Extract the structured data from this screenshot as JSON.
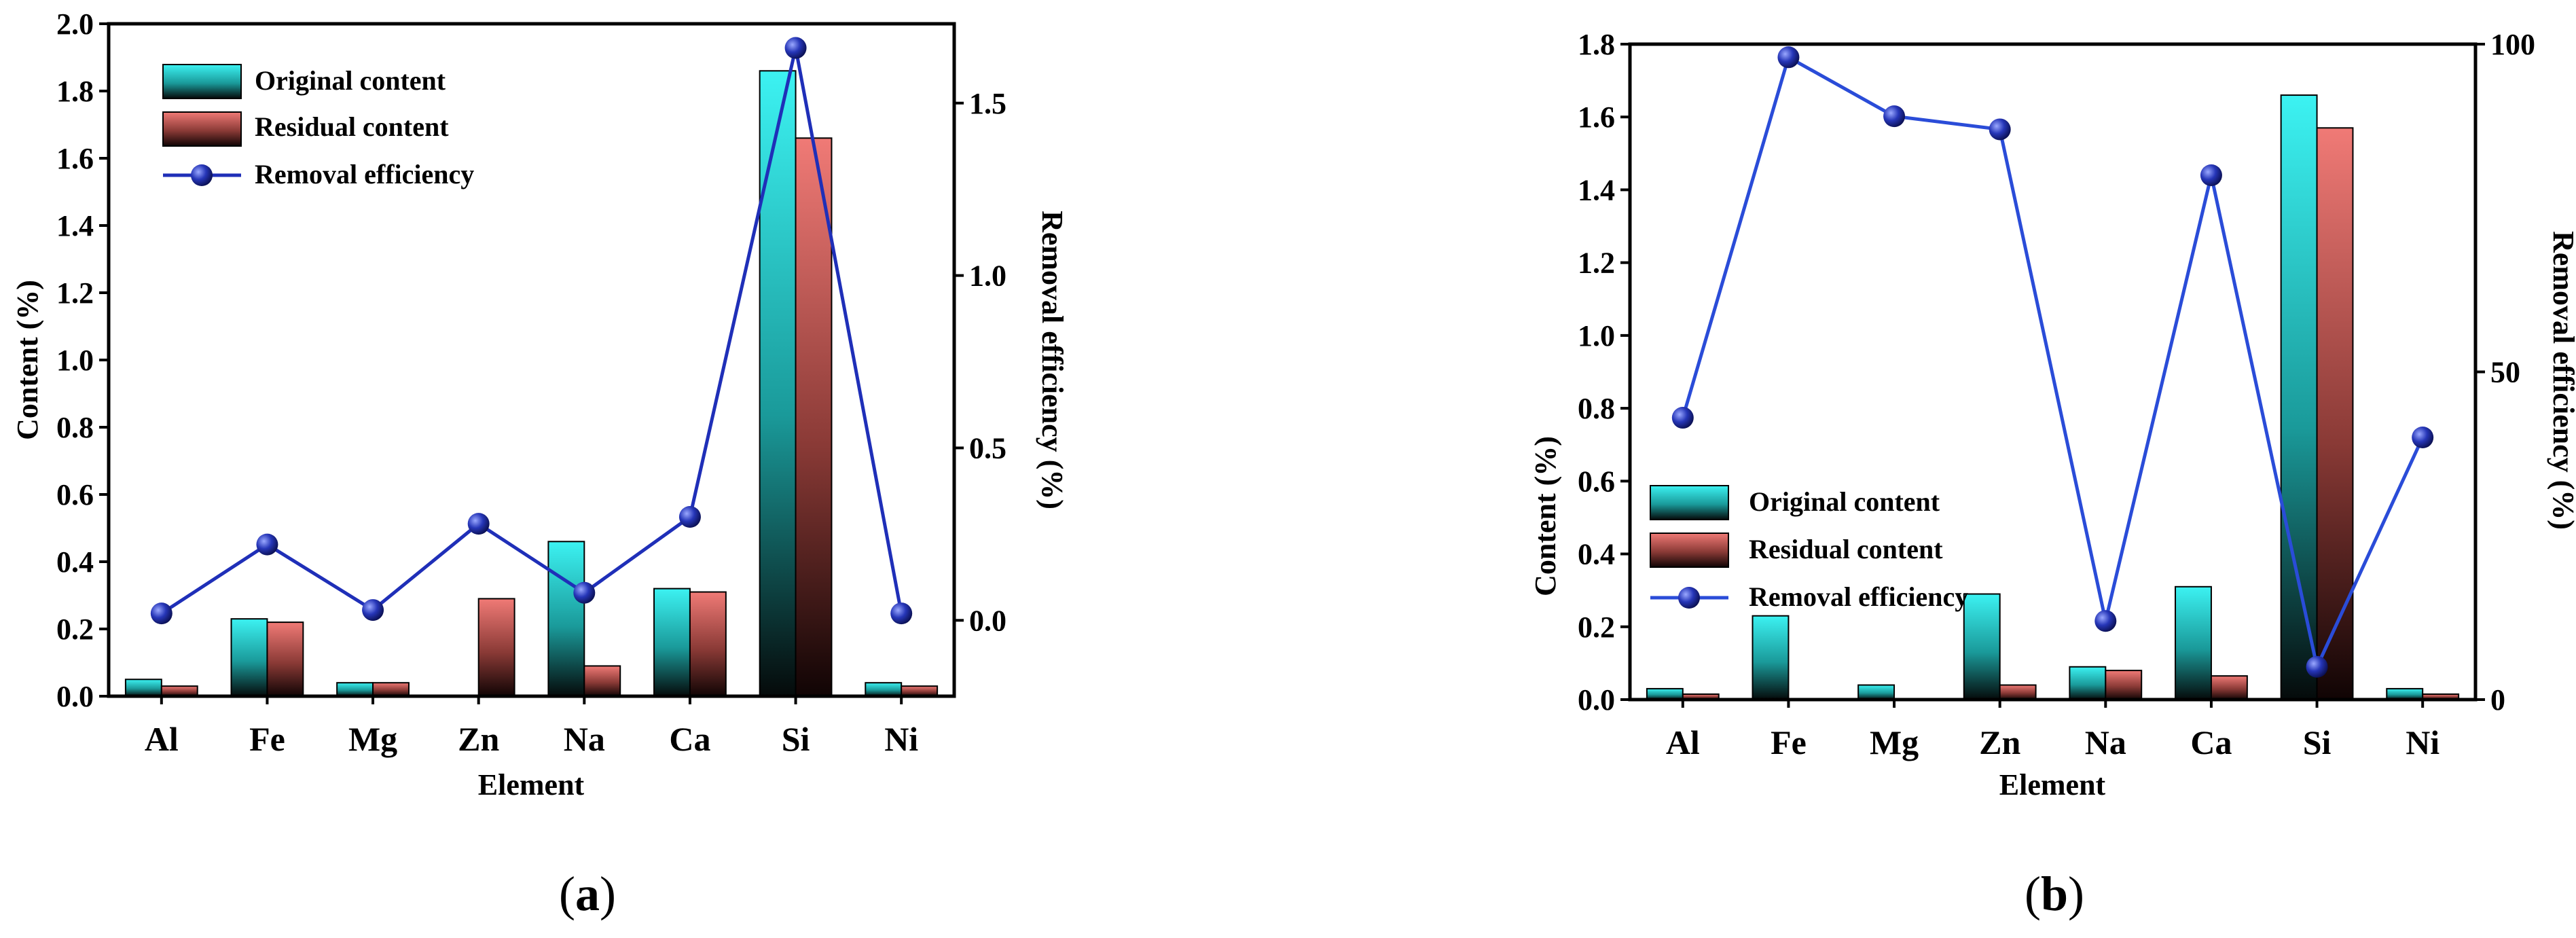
{
  "panels": [
    {
      "label_open": "(",
      "label_letter": "a",
      "label_close": ")"
    },
    {
      "label_open": "(",
      "label_letter": "b",
      "label_close": ")"
    }
  ],
  "chart_data": [
    {
      "type": "bar",
      "categories": [
        "Al",
        "Fe",
        "Mg",
        "Zn",
        "Na",
        "Ca",
        "Si",
        "Ni"
      ],
      "series": [
        {
          "name": "Original content",
          "values": [
            0.05,
            0.23,
            0.04,
            0.0,
            0.46,
            0.32,
            1.86,
            0.04
          ]
        },
        {
          "name": "Residual content",
          "values": [
            0.03,
            0.22,
            0.04,
            0.29,
            0.09,
            0.31,
            1.66,
            0.03
          ]
        }
      ],
      "line_series": {
        "name": "Removal efficiency",
        "axis": "right",
        "values": [
          0.02,
          0.22,
          0.03,
          0.28,
          0.08,
          0.3,
          1.66,
          0.02
        ]
      },
      "title": "",
      "xlabel": "Element",
      "ylabel": "Content (%)",
      "y2label": "Removal efficiency (%)",
      "ylim": [
        0,
        2.0
      ],
      "y2lim": [
        -0.22,
        1.73
      ],
      "yticks": [
        "0.0",
        "0.2",
        "0.4",
        "0.6",
        "0.8",
        "1.0",
        "1.2",
        "1.4",
        "1.6",
        "1.8",
        "2.0"
      ],
      "y2ticks": [
        "0.0",
        "0.5",
        "1.0",
        "1.5"
      ],
      "y2tick_values": [
        0.0,
        0.5,
        1.0,
        1.5
      ],
      "legend": "top-left",
      "colors": {
        "original": "#33e4e4",
        "residual": "#e46a66",
        "line": "#1f2fb8"
      }
    },
    {
      "type": "bar",
      "categories": [
        "Al",
        "Fe",
        "Mg",
        "Zn",
        "Na",
        "Ca",
        "Si",
        "Ni"
      ],
      "series": [
        {
          "name": "Original content",
          "values": [
            0.03,
            0.23,
            0.04,
            0.29,
            0.09,
            0.31,
            1.66,
            0.03
          ]
        },
        {
          "name": "Residual content",
          "values": [
            0.015,
            0.0,
            0.0,
            0.04,
            0.08,
            0.065,
            1.57,
            0.015
          ]
        }
      ],
      "line_series": {
        "name": "Removal efficiency",
        "axis": "right",
        "values": [
          43,
          98,
          89,
          87,
          12,
          80,
          5,
          40
        ]
      },
      "title": "",
      "xlabel": "Element",
      "ylabel": "Content (%)",
      "y2label": "Removal efficiency (%)",
      "ylim": [
        0,
        1.8
      ],
      "y2lim": [
        0,
        100
      ],
      "yticks": [
        "0.0",
        "0.2",
        "0.4",
        "0.6",
        "0.8",
        "1.0",
        "1.2",
        "1.4",
        "1.6",
        "1.8"
      ],
      "y2ticks": [
        "0",
        "50",
        "100"
      ],
      "y2tick_values": [
        0,
        50,
        100
      ],
      "legend": "center-left",
      "colors": {
        "original": "#33e4e4",
        "residual": "#e46a66",
        "line": "#2a4cd8"
      }
    }
  ]
}
